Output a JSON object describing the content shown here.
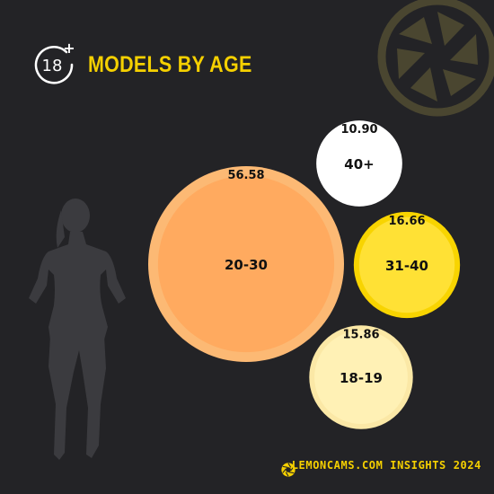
{
  "header": {
    "badge_text": "18",
    "badge_plus": "+",
    "title": "MODELS BY AGE"
  },
  "footer": {
    "text": "LEMONCAMS.COM INSIGHTS 2024"
  },
  "colors": {
    "background": "#232326",
    "accent": "#f5d000",
    "text_light": "#ffffff",
    "text_dark": "#111111"
  },
  "icons": {
    "badge": "adult-18-plus-icon",
    "watermark": "camera-shutter-icon",
    "footer": "lemon-shutter-icon",
    "decoration": "woman-silhouette"
  },
  "chart_data": {
    "type": "bubble",
    "title": "MODELS BY AGE",
    "categories": [
      "20-30",
      "40+",
      "31-40",
      "18-19"
    ],
    "values": [
      56.58,
      10.9,
      16.66,
      15.86
    ],
    "colors": [
      "#ffaa5f",
      "#ffffff",
      "#ffe135",
      "#fff1b5"
    ],
    "ring_colors": [
      "#fcb974",
      "#ffffff",
      "#f8d400",
      "#fbe8a6"
    ]
  }
}
